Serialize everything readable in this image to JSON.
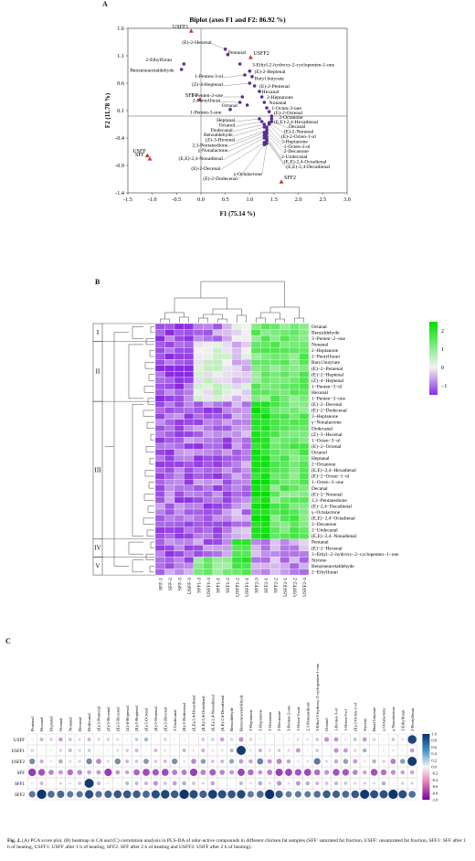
{
  "panel_a": {
    "letter": "A",
    "chart_data": {
      "type": "scatter",
      "title": "Biplot (axes F1 and F2: 86.92 %)",
      "xlabel": "F1 (75.14 %)",
      "ylabel": "F2 (11.78 %)",
      "xlim": [
        -1.5,
        3.0
      ],
      "ylim": [
        -1.4,
        1.6
      ],
      "xticks": [
        "-1.5",
        "-1.0",
        "-0.5",
        "0.0",
        "0.5",
        "1.0",
        "1.5",
        "2.0",
        "2.5",
        "3.0"
      ],
      "yticks": [
        "1.6",
        "1.1",
        "0.6",
        "0.1",
        "-0.4",
        "-0.9",
        "-1.4"
      ],
      "samples": [
        {
          "label": "USFF1",
          "x": -0.2,
          "y": 1.55
        },
        {
          "label": "USFF2",
          "x": 1.02,
          "y": 1.07
        },
        {
          "label": "SFF1",
          "x": -0.02,
          "y": 0.3
        },
        {
          "label": "USFF",
          "x": -1.1,
          "y": -0.72
        },
        {
          "label": "SFF",
          "x": -1.05,
          "y": -0.78
        },
        {
          "label": "SFF2",
          "x": 1.65,
          "y": -1.2
        }
      ],
      "compounds": [
        {
          "label": "(E)-2-Hexenal",
          "x": 0.5,
          "y": 1.22,
          "lx": 0.22,
          "ly": 1.32
        },
        {
          "label": "Pentanal",
          "x": 0.55,
          "y": 1.12,
          "lx": 0.56,
          "ly": 1.13
        },
        {
          "label": "2-Ethylfuran",
          "x": -0.35,
          "y": 0.95,
          "lx": -0.6,
          "ly": 1.0
        },
        {
          "label": "Benzeneacetaldehyde",
          "x": -0.4,
          "y": 0.85,
          "lx": -0.55,
          "ly": 0.81
        },
        {
          "label": "3-Ethyl-2-hydroxy-2-cyclopenten-1-one",
          "x": 0.8,
          "y": 0.95,
          "lx": 1.05,
          "ly": 0.91
        },
        {
          "label": "(E)-2-Heptenal",
          "x": 1.0,
          "y": 0.82,
          "lx": 1.1,
          "ly": 0.78
        },
        {
          "label": "1-Penten-3-ol",
          "x": 0.9,
          "y": 0.75,
          "lx": 0.45,
          "ly": 0.7
        },
        {
          "label": "Butyl butyrate",
          "x": 1.05,
          "y": 0.72,
          "lx": 1.1,
          "ly": 0.66
        },
        {
          "label": "(Z)-4-Heptenal",
          "x": 1.0,
          "y": 0.6,
          "lx": 0.45,
          "ly": 0.55
        },
        {
          "label": "(E)-2-Pentenal",
          "x": 1.1,
          "y": 0.55,
          "lx": 1.2,
          "ly": 0.52
        },
        {
          "label": "Hexanal",
          "x": 1.2,
          "y": 0.45,
          "lx": 1.25,
          "ly": 0.42
        },
        {
          "label": "3-Penten-2-one",
          "x": 0.85,
          "y": 0.35,
          "lx": 0.45,
          "ly": 0.35
        },
        {
          "label": "2-Heptanone",
          "x": 1.25,
          "y": 0.35,
          "lx": 1.35,
          "ly": 0.32
        },
        {
          "label": "2-Pentylfuran",
          "x": 0.8,
          "y": 0.25,
          "lx": 0.4,
          "ly": 0.26
        },
        {
          "label": "Nonanal",
          "x": 1.3,
          "y": 0.25,
          "lx": 1.4,
          "ly": 0.22
        },
        {
          "label": "Octanal",
          "x": 0.95,
          "y": 0.2,
          "lx": 0.75,
          "ly": 0.17
        },
        {
          "label": "1-Octen-3-one",
          "x": 1.35,
          "y": 0.15,
          "lx": 1.45,
          "ly": 0.12
        },
        {
          "label": "1-Penten-3-one",
          "x": 0.6,
          "y": 0.12,
          "lx": 0.42,
          "ly": 0.04
        },
        {
          "label": "(E)-2-Octenal",
          "x": 1.4,
          "y": 0.08,
          "lx": 1.5,
          "ly": 0.03
        },
        {
          "label": "2-Octanone",
          "x": 1.45,
          "y": 0.0,
          "lx": 1.6,
          "ly": -0.05
        },
        {
          "label": "(E,E)-2,4-Hexadienal",
          "x": 1.45,
          "y": -0.05,
          "lx": 1.5,
          "ly": -0.13
        },
        {
          "label": "Heptanal",
          "x": 1.2,
          "y": -0.05,
          "lx": 0.7,
          "ly": -0.1
        },
        {
          "label": "Decanal",
          "x": 1.45,
          "y": -0.1,
          "lx": 1.8,
          "ly": -0.22
        },
        {
          "label": "Octanol",
          "x": 1.25,
          "y": -0.1,
          "lx": 0.7,
          "ly": -0.19
        },
        {
          "label": "(E)-2-Nonenal",
          "x": 1.4,
          "y": -0.12,
          "lx": 1.7,
          "ly": -0.31
        },
        {
          "label": "Dodecanal",
          "x": 1.3,
          "y": -0.15,
          "lx": 0.65,
          "ly": -0.28
        },
        {
          "label": "(E)-2-Octen-1-ol",
          "x": 1.4,
          "y": -0.15,
          "lx": 1.65,
          "ly": -0.4
        },
        {
          "label": "Benzaldehyde",
          "x": 1.3,
          "y": -0.2,
          "lx": 0.65,
          "ly": -0.37
        },
        {
          "label": "3-Heptanone",
          "x": 1.35,
          "y": -0.2,
          "lx": 1.65,
          "ly": -0.49
        },
        {
          "label": "(Z)-3-Hexenal",
          "x": 1.35,
          "y": -0.25,
          "lx": 0.7,
          "ly": -0.46
        },
        {
          "label": "1-Octen-3-ol",
          "x": 1.35,
          "y": -0.28,
          "lx": 1.7,
          "ly": -0.58
        },
        {
          "label": "2,3-Pentanedione",
          "x": 1.3,
          "y": -0.3,
          "lx": 0.55,
          "ly": -0.56
        },
        {
          "label": "2-Decanone",
          "x": 1.35,
          "y": -0.32,
          "lx": 1.7,
          "ly": -0.67
        },
        {
          "label": "γ-Nonalactone",
          "x": 1.3,
          "y": -0.35,
          "lx": 0.55,
          "ly": -0.65
        },
        {
          "label": "2-Undecanal",
          "x": 1.35,
          "y": -0.38,
          "lx": 1.65,
          "ly": -0.77
        },
        {
          "label": "(E,E)-2,4-Nonadienal",
          "x": 1.3,
          "y": -0.4,
          "lx": 0.45,
          "ly": -0.8
        },
        {
          "label": "(E,E)-2,4-Octadienal",
          "x": 1.35,
          "y": -0.42,
          "lx": 1.7,
          "ly": -0.86
        },
        {
          "label": "(E,E)-2,4-Decadienal",
          "x": 1.35,
          "y": -0.45,
          "lx": 1.75,
          "ly": -0.95
        },
        {
          "label": "(E)-2-Decenal",
          "x": 1.3,
          "y": -0.48,
          "lx": 0.4,
          "ly": -0.98
        },
        {
          "label": "γ-Octalactone",
          "x": 1.35,
          "y": -0.5,
          "lx": 1.25,
          "ly": -1.08
        },
        {
          "label": "(E)-2-Dodecenal",
          "x": 1.3,
          "y": -0.52,
          "lx": 0.75,
          "ly": -1.17
        }
      ]
    }
  },
  "panel_b": {
    "letter": "B",
    "chart_data": {
      "type": "heatmap",
      "columns": [
        "SFF-1",
        "SFF-2",
        "SFF-3",
        "USFF-3",
        "SFF1-3",
        "USFF1-3",
        "SFF1-1",
        "SFF1-2",
        "USFF1-2",
        "USFF1-1",
        "SFF2-3",
        "SFF2-1",
        "SFF2-2",
        "USFF2-1",
        "USFF2-2",
        "USFF2-3"
      ],
      "rows": [
        "Octanal",
        "Benzaldehyde",
        "3−Penten−2−one",
        "Nonanal",
        "2−Heptanone",
        "2−Pentylfuran",
        "Butyl butyrate",
        "(E)−2−Pentenal",
        "(E)−2−Heptenal",
        "(Z)−4−Heptenal",
        "1−Penten−3−ol",
        "Hexanal",
        "1−Penten−3−one",
        "(E)−2−Decenal",
        "(E)−2−Dodecenal",
        "3−Heptanone",
        "γ−Nonalactone",
        "Dodecanal",
        "(Z)−3−Hexenal",
        "1−Octen−3−ol",
        "(E)−2−Octenal",
        "Octanol",
        "Heptanal",
        "2−Octanone",
        "(E,E)−2,4−Hexadienal",
        "(E)−2−Octen−1−ol",
        "1−Octen−3−one",
        "Decanal",
        "(E)−2−Nonenal",
        "2,3−Pentanedione",
        "(E)−2,4−Decadienal",
        "γ−Octalactone",
        "(E,E)−2,4−Octadienal",
        "2−Decanone",
        "2−Undecanal",
        "(E,E)−2,4−Nonadienal",
        "Pentanal",
        "(E)−2−Hexenal",
        "3−Ethyl−2−hydroxy−2−cyclopenten−1−one",
        "Styrene",
        "Benzeneacetaldehyde",
        "2−Ethylfuran"
      ],
      "clusters": [
        {
          "label": "I",
          "start": 0,
          "end": 2
        },
        {
          "label": "II",
          "start": 3,
          "end": 12
        },
        {
          "label": "III",
          "start": 13,
          "end": 35
        },
        {
          "label": "IV",
          "start": 36,
          "end": 38
        },
        {
          "label": "V",
          "start": 39,
          "end": 41
        }
      ],
      "colorbar": {
        "ticks": [
          "2",
          "1",
          "0",
          "−1"
        ],
        "min": -1.5,
        "max": 2.5,
        "colors": [
          "#8a2be2",
          "#f3f3f3",
          "#00e000"
        ]
      }
    }
  },
  "panel_c": {
    "letter": "C",
    "chart_data": {
      "type": "heatmap",
      "rows": [
        "USFF",
        "USFF1",
        "USFF2",
        "SFF",
        "SFF1",
        "SFF2"
      ],
      "columns": [
        "Pentanal",
        "Hexanal",
        "Heptanal",
        "Octanal",
        "Nonanal",
        "Decanal",
        "Dodecanal",
        "(E)-2-Pentenal",
        "(Z)-3-Hexenal",
        "(E)-2-Hexenal",
        "(Z)-4-Heptenal",
        "(E)-2-Heptenal",
        "(E)-2-Octenal",
        "(E)-2-Nonenal",
        "(E)-2-Decenal",
        "2-Undecanal",
        "(E)-2-Dodecenal",
        "(E,E)-2,4-Hexadienal",
        "(E,E)-2,4-Octadienal",
        "(E,E)-2,4-Nonadienal",
        "(E,E)-2,4-Decadienal",
        "Benzaldehyde",
        "Benzeneacetaldehyde",
        "3-Heptanone",
        "2-Heptanone",
        "2-Octanone",
        "2-Decanone",
        "3-Penten-2-one",
        "1-Octen-3-one",
        "2,3-Pentanedione",
        "3-Ethyl-2-hydroxy-2-cyclopenten-1-one",
        "Octanol",
        "1-Penten-3-ol",
        "1-Octen-3-ol",
        "(E)-2-Octen-1-ol",
        "Styrene",
        "Butyl butyrate",
        "γ-Octalactone",
        "γ-Nonalactone",
        "2-Ethylfuran",
        "2-Pentylfuran"
      ],
      "colorbar": {
        "ticks": [
          "1.0",
          "0.8",
          "0.6",
          "0.4",
          "0.2",
          "0.0",
          "-0.2",
          "-0.4",
          "-0.6",
          "-0.8",
          "-1.0"
        ],
        "min": -1,
        "max": 1
      }
    }
  },
  "caption": {
    "label": "Fig. 2.",
    "text": " (A) PCA score plot, (B) heatmap in CA and (C) correlation analysis in PLS-DA of odor-active compounds in different chicken fat samples (SFF: saturated fat fraction, USFF: unsaturated fat fraction, SFF1: SFF after 1 h of heating, USFF1: USFF after 1 h of heating, SFF2: SFF after 2 h of heating and USFF2: USFF after 2 h of heating)."
  }
}
